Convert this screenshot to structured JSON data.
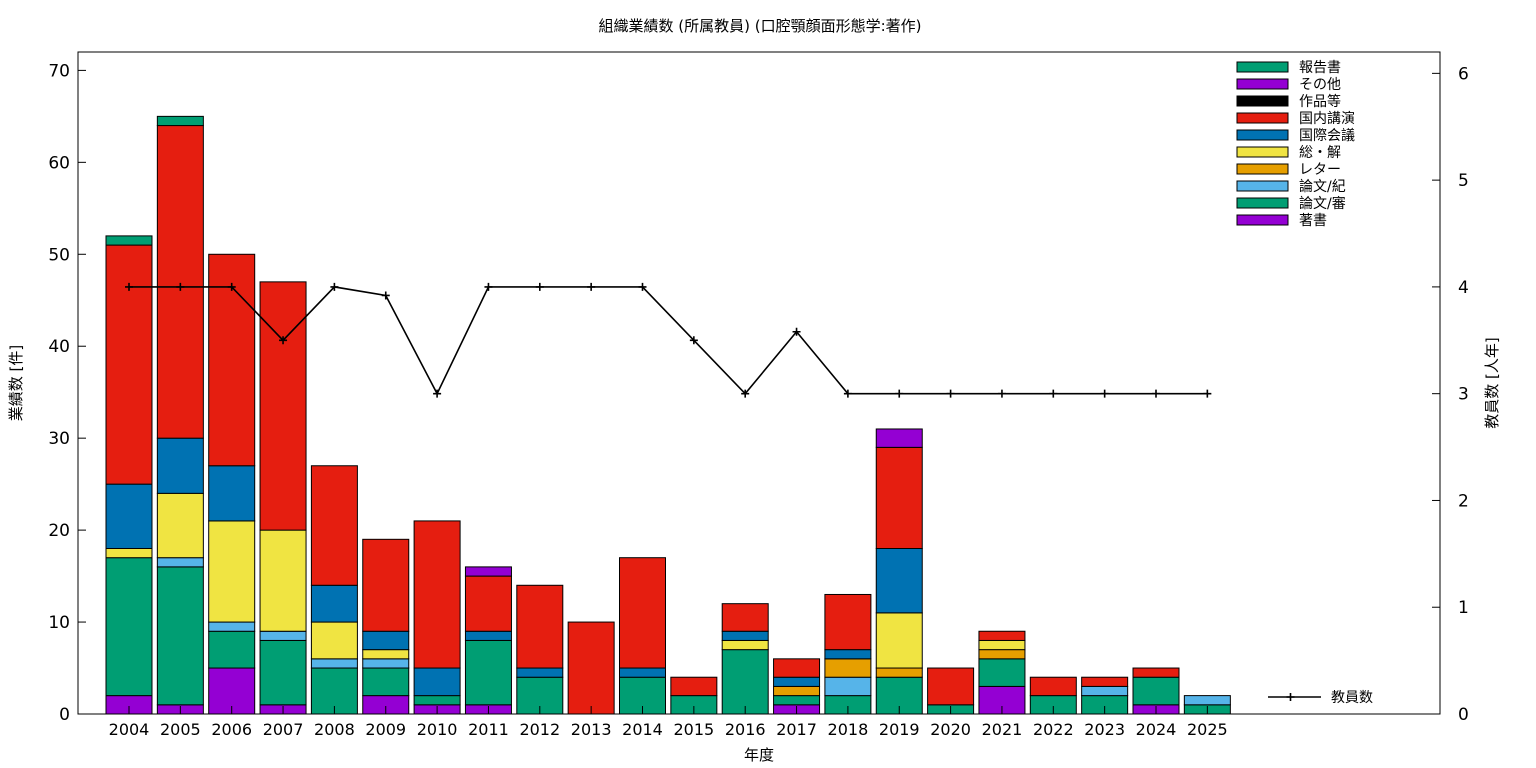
{
  "chart_data": {
    "type": "bar",
    "stacked": true,
    "title": "組織業績数 (所属教員) (口腔顎顔面形態学:著作)",
    "xlabel": "年度",
    "ylabel": "業績数 [件]",
    "y2label": "教員数 [人年]",
    "ylim": [
      0,
      72
    ],
    "y2lim": [
      0,
      6.2
    ],
    "yticks": [
      "0",
      "10",
      "20",
      "30",
      "40",
      "50",
      "60",
      "70"
    ],
    "y2ticks": [
      "0",
      "1",
      "2",
      "3",
      "4",
      "5",
      "6"
    ],
    "legend_position": "top-right",
    "categories": [
      "2004",
      "2005",
      "2006",
      "2007",
      "2008",
      "2009",
      "2010",
      "2011",
      "2012",
      "2013",
      "2014",
      "2015",
      "2016",
      "2017",
      "2018",
      "2019",
      "2020",
      "2021",
      "2022",
      "2023",
      "2024",
      "2025"
    ],
    "series": [
      {
        "name": "著書",
        "color": "#9400d3",
        "values": [
          2,
          1,
          5,
          1,
          0,
          2,
          1,
          1,
          0,
          0,
          0,
          0,
          0,
          1,
          0,
          0,
          0,
          3,
          0,
          0,
          1,
          0
        ]
      },
      {
        "name": "論文/審",
        "color": "#009e73",
        "values": [
          15,
          15,
          4,
          7,
          5,
          3,
          1,
          7,
          4,
          0,
          4,
          2,
          7,
          1,
          2,
          4,
          1,
          3,
          2,
          2,
          3,
          1
        ]
      },
      {
        "name": "論文/紀",
        "color": "#56b4e9",
        "values": [
          0,
          1,
          1,
          1,
          1,
          1,
          0,
          0,
          0,
          0,
          0,
          0,
          0,
          0,
          2,
          0,
          0,
          0,
          0,
          1,
          0,
          1
        ]
      },
      {
        "name": "レター",
        "color": "#e69f00",
        "values": [
          0,
          0,
          0,
          0,
          0,
          0,
          0,
          0,
          0,
          0,
          0,
          0,
          0,
          1,
          2,
          1,
          0,
          1,
          0,
          0,
          0,
          0
        ]
      },
      {
        "name": "総・解",
        "color": "#f0e442",
        "values": [
          1,
          7,
          11,
          11,
          4,
          1,
          0,
          0,
          0,
          0,
          0,
          0,
          1,
          0,
          0,
          6,
          0,
          1,
          0,
          0,
          0,
          0
        ]
      },
      {
        "name": "国際会議",
        "color": "#0072b2",
        "values": [
          7,
          6,
          6,
          0,
          4,
          2,
          3,
          1,
          1,
          0,
          1,
          0,
          1,
          1,
          1,
          7,
          0,
          0,
          0,
          0,
          0,
          0
        ]
      },
      {
        "name": "国内講演",
        "color": "#e51e10",
        "values": [
          26,
          34,
          23,
          27,
          13,
          10,
          16,
          6,
          9,
          10,
          12,
          2,
          3,
          2,
          6,
          11,
          4,
          1,
          2,
          1,
          1,
          0
        ]
      },
      {
        "name": "作品等",
        "color": "#000000",
        "values": [
          0,
          0,
          0,
          0,
          0,
          0,
          0,
          0,
          0,
          0,
          0,
          0,
          0,
          0,
          0,
          0,
          0,
          0,
          0,
          0,
          0,
          0
        ]
      },
      {
        "name": "その他",
        "color": "#9400d3",
        "values": [
          0,
          0,
          0,
          0,
          0,
          0,
          0,
          1,
          0,
          0,
          0,
          0,
          0,
          0,
          0,
          2,
          0,
          0,
          0,
          0,
          0,
          0
        ]
      },
      {
        "name": "報告書",
        "color": "#009e73",
        "values": [
          1,
          1,
          0,
          0,
          0,
          0,
          0,
          0,
          0,
          0,
          0,
          0,
          0,
          0,
          0,
          0,
          0,
          0,
          0,
          0,
          0,
          0
        ]
      }
    ],
    "line": {
      "name": "教員数",
      "axis": "y2",
      "color": "#000000",
      "values": [
        4,
        4,
        4,
        3.5,
        4,
        3.92,
        3,
        4,
        4,
        4,
        4,
        3.5,
        3,
        3.58,
        3,
        3,
        3,
        3,
        3,
        3,
        3,
        3
      ]
    }
  }
}
